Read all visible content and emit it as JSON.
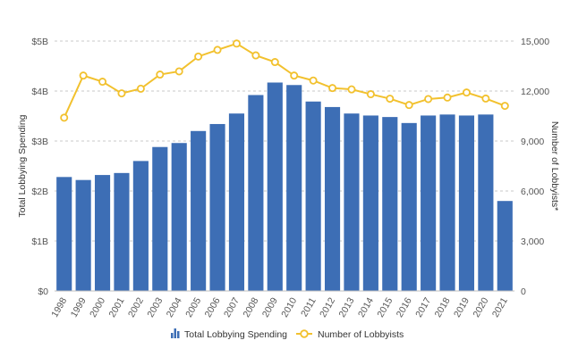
{
  "chart_data": {
    "type": "bar",
    "categories": [
      "1998",
      "1999",
      "2000",
      "2001",
      "2002",
      "2003",
      "2004",
      "2005",
      "2006",
      "2007",
      "2008",
      "2009",
      "2010",
      "2011",
      "2012",
      "2013",
      "2014",
      "2015",
      "2016",
      "2017",
      "2018",
      "2019",
      "2020",
      "2021"
    ],
    "series": [
      {
        "name": "Total Lobbying Spending",
        "type": "bar",
        "axis": "left",
        "color": "#3d6eb5",
        "values": [
          2.28,
          2.22,
          2.32,
          2.36,
          2.6,
          2.88,
          2.96,
          3.2,
          3.34,
          3.55,
          3.92,
          4.17,
          4.12,
          3.79,
          3.68,
          3.55,
          3.51,
          3.48,
          3.36,
          3.51,
          3.53,
          3.51,
          3.53,
          1.8
        ]
      },
      {
        "name": "Number of Lobbyists",
        "type": "line",
        "axis": "right",
        "color": "#f2c12e",
        "values": [
          10400,
          12930,
          12560,
          11860,
          12140,
          12990,
          13180,
          14070,
          14470,
          14850,
          14140,
          13740,
          12930,
          12630,
          12180,
          12100,
          11810,
          11540,
          11160,
          11520,
          11610,
          11910,
          11550,
          11110
        ]
      }
    ],
    "y_left": {
      "title": "Total Lobbying Spending",
      "range": [
        0,
        5
      ],
      "ticks": [
        0,
        1,
        2,
        3,
        4,
        5
      ],
      "tick_labels": [
        "$0",
        "$1B",
        "$2B",
        "$3B",
        "$4B",
        "$5B"
      ]
    },
    "y_right": {
      "title": "Number of Lobbyists*",
      "range": [
        0,
        15000
      ],
      "ticks": [
        0,
        3000,
        6000,
        9000,
        12000,
        15000
      ],
      "tick_labels": [
        "0",
        "3,000",
        "6,000",
        "9,000",
        "12,000",
        "15,000"
      ]
    },
    "grid": true,
    "legend": "bottom-center",
    "legend_entries": [
      "Total Lobbying Spending",
      "Number of Lobbyists"
    ]
  }
}
